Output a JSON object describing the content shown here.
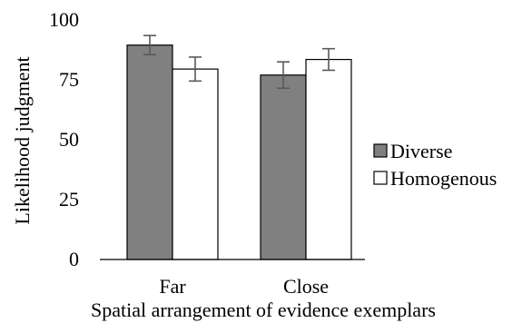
{
  "chart_data": {
    "type": "bar",
    "categories": [
      "Far",
      "Close"
    ],
    "series": [
      {
        "name": "Diverse",
        "values": [
          89.5,
          77
        ],
        "error": [
          4,
          5.5
        ],
        "color": "#808080"
      },
      {
        "name": "Homogenous",
        "values": [
          79.5,
          83.5
        ],
        "error": [
          5,
          4.5
        ],
        "color": "#ffffff"
      }
    ],
    "xlabel": "Spatial arrangement of evidence exemplars",
    "ylabel": "Likelihood judgment",
    "ylim": [
      0,
      100
    ],
    "yticks": [
      0,
      25,
      50,
      75,
      100
    ],
    "grid": false,
    "legend_position": "right"
  }
}
